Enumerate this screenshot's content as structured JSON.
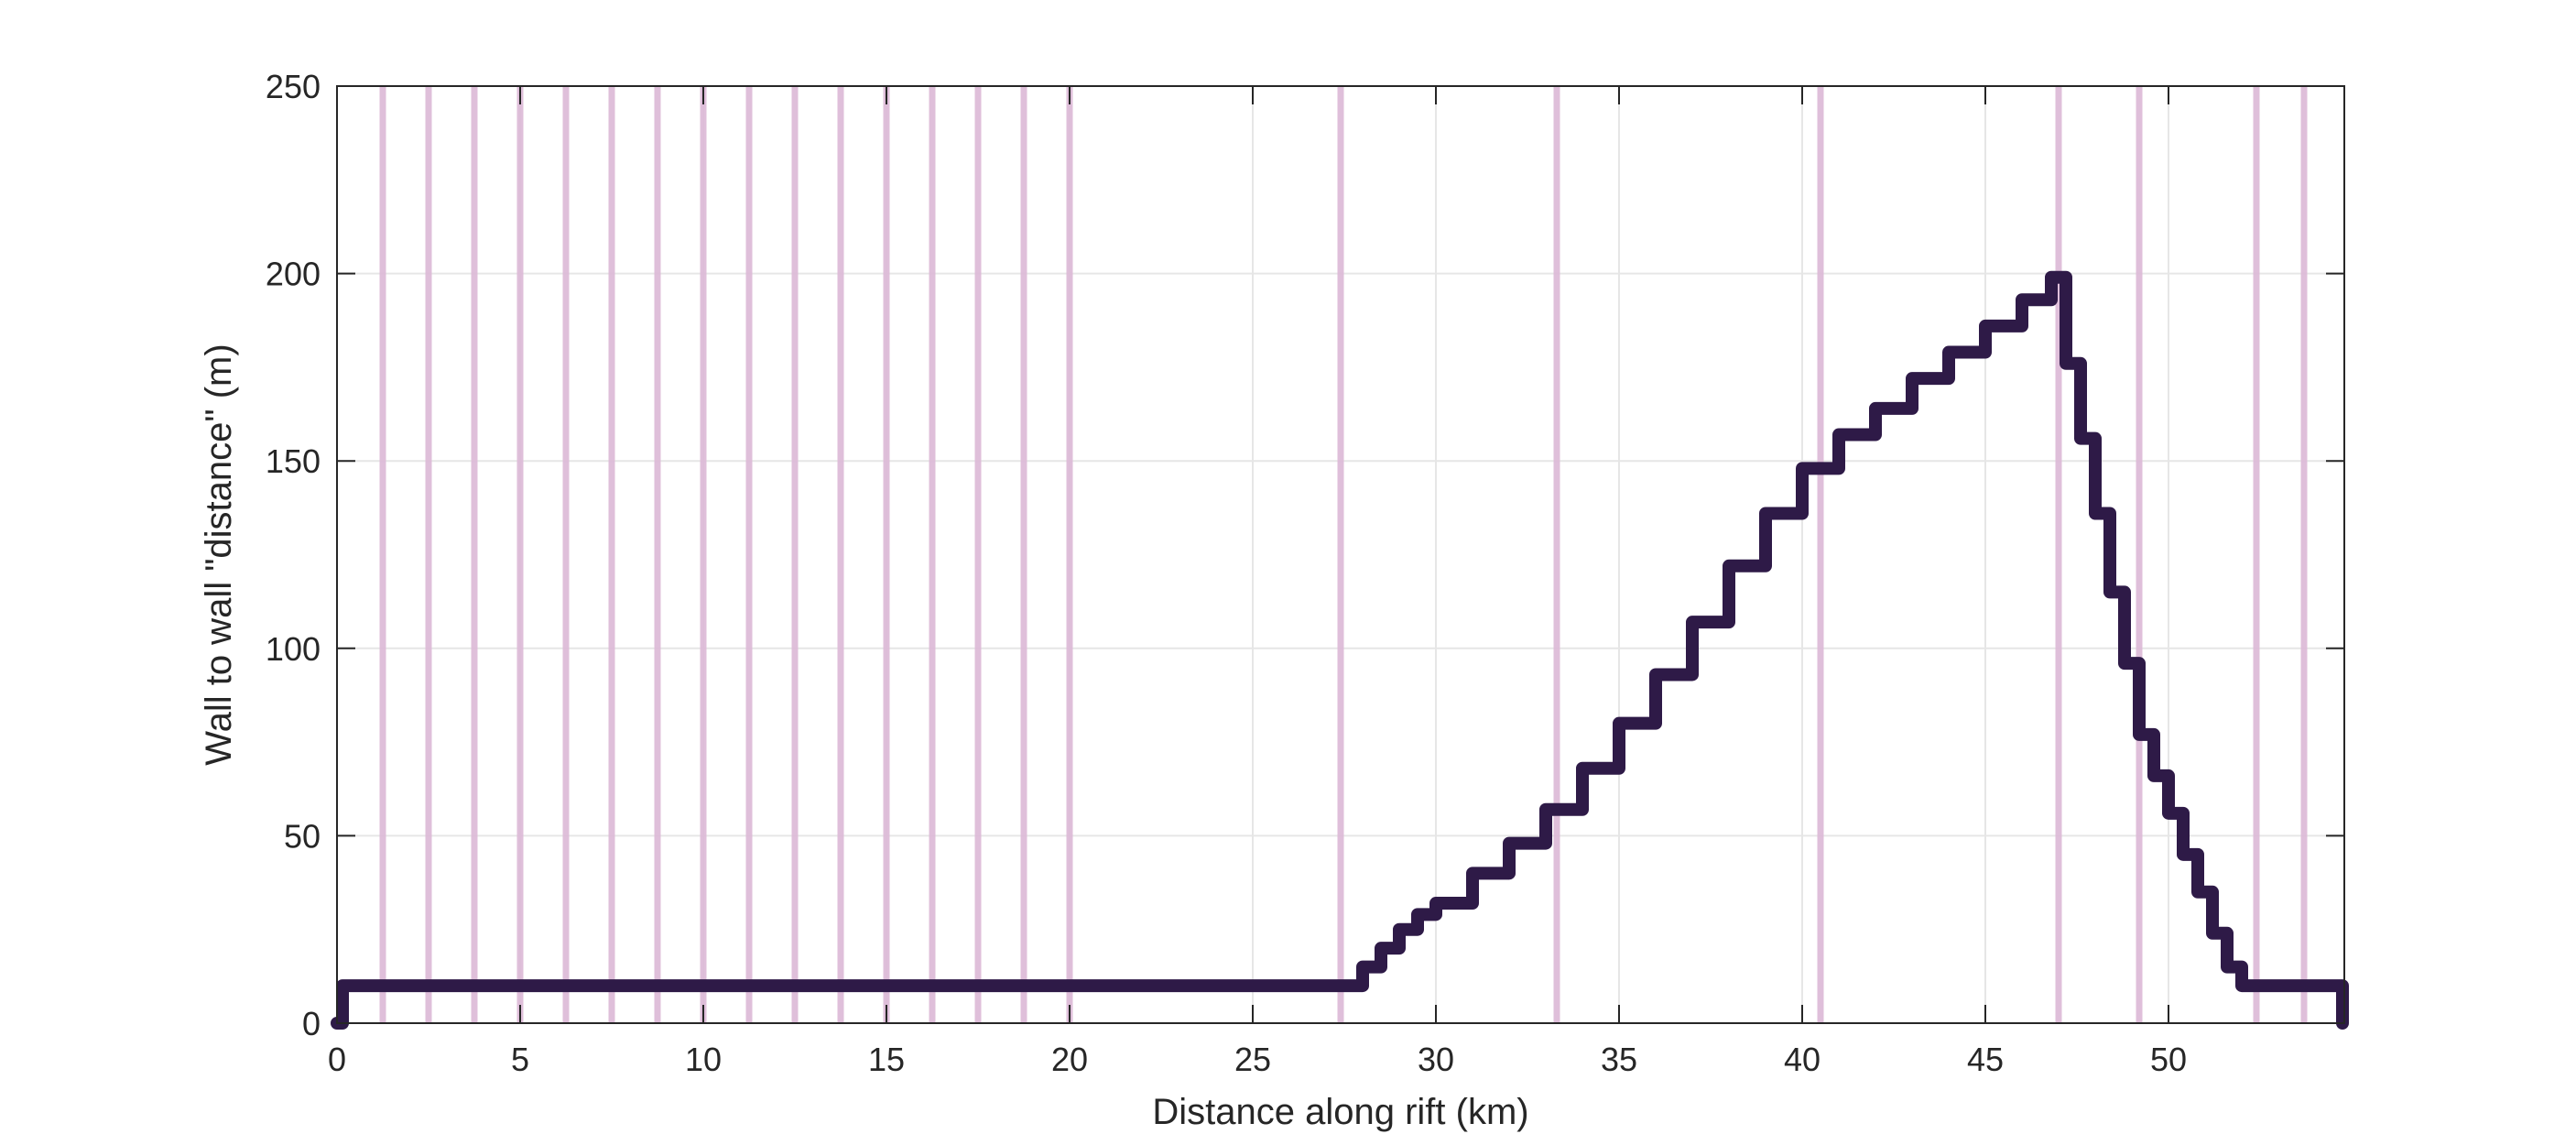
{
  "chart_data": {
    "type": "line",
    "title": "",
    "xlabel": "Distance along rift (km)",
    "ylabel": "Wall to wall \"distance\" (m)",
    "xlim": [
      0,
      54.8
    ],
    "ylim": [
      0,
      250
    ],
    "xticks": [
      0,
      5,
      10,
      15,
      20,
      25,
      30,
      35,
      40,
      45,
      50
    ],
    "yticks": [
      0,
      50,
      100,
      150,
      200,
      250
    ],
    "grid": true,
    "legend": "none",
    "colors": {
      "line": "#2e1a47",
      "markers": "#dbb8d6",
      "grid": "#e6e6e6",
      "axes": "#262626"
    },
    "vertical_markers_km": [
      1.25,
      2.5,
      3.75,
      5.0,
      6.25,
      7.5,
      8.75,
      10.0,
      11.25,
      12.5,
      13.75,
      15.0,
      16.25,
      17.5,
      18.75,
      20.0,
      27.4,
      33.3,
      40.5,
      47.0,
      49.2,
      52.4,
      53.7
    ],
    "series": [
      {
        "x": [
          0,
          0.15,
          27.6,
          28.0,
          28.5,
          29.0,
          29.5,
          30.0,
          31.0,
          32.0,
          33.0,
          34.0,
          35.0,
          36.0,
          37.0,
          38.0,
          39.0,
          40.0,
          41.0,
          42.0,
          43.0,
          44.0,
          45.0,
          46.0,
          46.8,
          47.1,
          47.2,
          47.6,
          48.0,
          48.4,
          48.8,
          49.2,
          49.6,
          50.0,
          50.4,
          50.8,
          51.2,
          51.6,
          52.0,
          52.4,
          54.7,
          54.75
        ],
        "y": [
          0,
          10,
          10,
          15,
          20,
          25,
          29,
          32,
          40,
          48,
          57,
          68,
          80,
          93,
          107,
          122,
          136,
          148,
          157,
          164,
          172,
          179,
          186,
          193,
          199,
          199,
          176,
          156,
          136,
          115,
          96,
          77,
          66,
          56,
          45,
          35,
          24,
          15,
          10,
          10,
          10,
          0
        ]
      }
    ]
  }
}
